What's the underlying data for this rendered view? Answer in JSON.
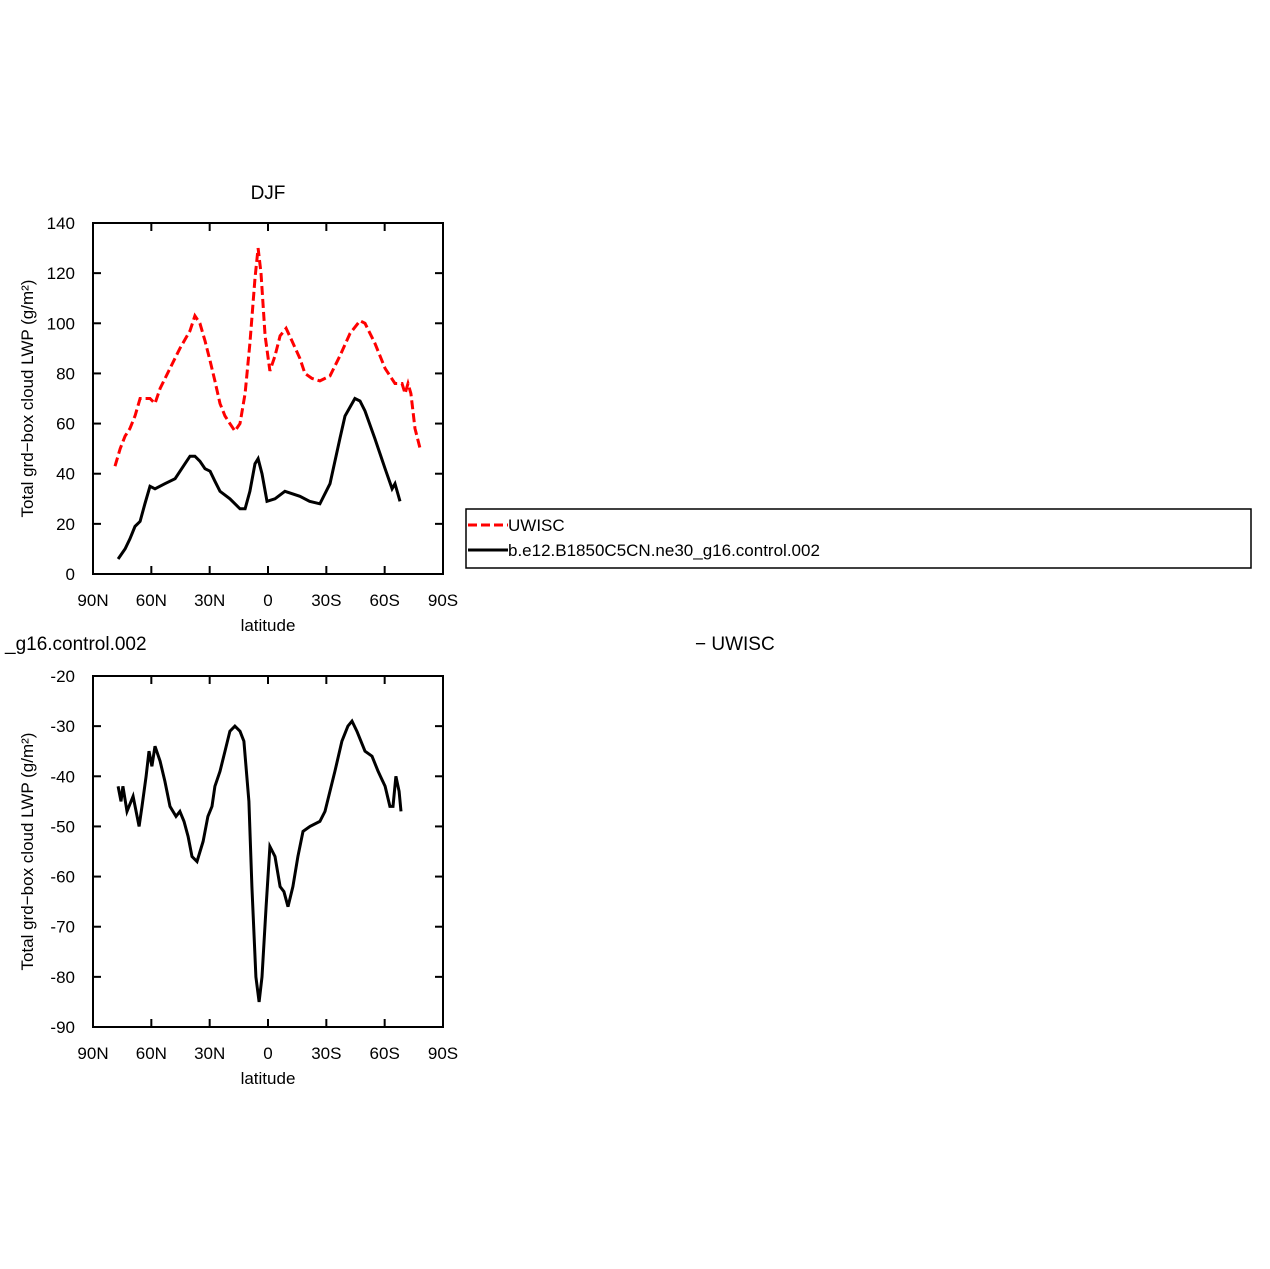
{
  "chart_data": [
    {
      "type": "line",
      "title": "DJF",
      "xlabel": "latitude",
      "ylabel": "Total grd−box cloud LWP (g/m²)",
      "xlim": [
        90,
        -90
      ],
      "ylim": [
        0,
        140
      ],
      "xticks": [
        {
          "value": 90,
          "label": "90N"
        },
        {
          "value": 60,
          "label": "60N"
        },
        {
          "value": 30,
          "label": "30N"
        },
        0,
        {
          "value": -30,
          "label": "30S"
        },
        {
          "value": -60,
          "label": "60S"
        },
        {
          "value": -90,
          "label": "90S"
        }
      ],
      "yticks": [
        0,
        20,
        40,
        60,
        80,
        100,
        120,
        140
      ],
      "legend": "right",
      "series": [
        {
          "name": "UWISC",
          "color": "#ff0000",
          "line_style": "dashed",
          "x": [
            78.7,
            76,
            73.5,
            71,
            68.4,
            65.8,
            63.3,
            60.7,
            58.1,
            55.5,
            50.4,
            45.3,
            40.1,
            37.6,
            35,
            32.4,
            29.8,
            27.3,
            24.7,
            22.1,
            19.6,
            17,
            14.4,
            11.8,
            9.3,
            6.7,
            5.1,
            3.6,
            1.5,
            -1,
            -3.6,
            -6.2,
            -9.3,
            -12.3,
            -16.4,
            -19,
            -22.6,
            -26.7,
            -31.9,
            -37,
            -42.2,
            -47.3,
            -49.9,
            -55,
            -60.2,
            -65.3,
            -68.9,
            -70.5,
            -72,
            -73.5,
            -75.6,
            -78.2
          ],
          "values": [
            43,
            50,
            55,
            58,
            63,
            70,
            70,
            70,
            68,
            74,
            82,
            90,
            97,
            103,
            100,
            93,
            85,
            77,
            68,
            63,
            60,
            57,
            60,
            72,
            92,
            118,
            130,
            120,
            95,
            81,
            87,
            95,
            98,
            93,
            86,
            80,
            78,
            77,
            79,
            87,
            96,
            101,
            100,
            92,
            82,
            76,
            76,
            72,
            76,
            72,
            58,
            50
          ]
        },
        {
          "name": "b.e12.B1850C5CN.ne30_g16.control.002",
          "color": "#000000",
          "line_style": "solid",
          "x": [
            77.1,
            73.5,
            71,
            68.4,
            65.8,
            63.3,
            60.7,
            58.1,
            53,
            47.8,
            42.7,
            40.1,
            37.6,
            35,
            32.4,
            29.8,
            27.3,
            24.7,
            19.6,
            14.4,
            11.8,
            9.3,
            6.7,
            5.1,
            3.1,
            0.5,
            -3.6,
            -8.7,
            -16.4,
            -21.4,
            -26.7,
            -31.9,
            -37,
            -39.6,
            -44.7,
            -47.3,
            -49.9,
            -55,
            -60.2,
            -63.8,
            -65.3,
            -67.9
          ],
          "values": [
            6,
            10,
            14,
            19,
            21,
            28,
            35,
            34,
            36,
            38,
            44,
            47,
            47,
            45,
            42,
            41,
            37,
            33,
            30,
            26,
            26,
            33,
            44,
            46,
            40,
            29,
            30,
            33,
            31,
            29,
            28,
            36,
            54,
            63,
            70,
            69,
            65,
            54,
            42,
            34,
            36,
            29
          ]
        }
      ]
    },
    {
      "type": "line",
      "subtitle_left": "_g16.control.002",
      "subtitle_right": "− UWISC",
      "xlabel": "latitude",
      "ylabel": "Total grd−box cloud LWP (g/m²)",
      "xlim": [
        90,
        -90
      ],
      "ylim": [
        -90,
        -20
      ],
      "xticks": [
        {
          "value": 90,
          "label": "90N"
        },
        {
          "value": 60,
          "label": "60N"
        },
        {
          "value": 30,
          "label": "30N"
        },
        0,
        {
          "value": -30,
          "label": "30S"
        },
        {
          "value": -60,
          "label": "60S"
        },
        {
          "value": -90,
          "label": "90S"
        }
      ],
      "yticks": [
        -90,
        -80,
        -70,
        -60,
        -50,
        -40,
        -30,
        -20
      ],
      "series": [
        {
          "color": "#000000",
          "line_style": "solid",
          "x": [
            77.1,
            75.6,
            74.6,
            72.5,
            69.4,
            66.3,
            64.8,
            62.7,
            61.2,
            59.7,
            58.1,
            55.5,
            53,
            50.4,
            47.3,
            45.3,
            43.2,
            41.1,
            39.1,
            36.5,
            33.4,
            30.9,
            28.8,
            27.3,
            24.7,
            22.1,
            19.6,
            17,
            14.4,
            12.4,
            9.8,
            8.3,
            6.2,
            4.6,
            3.1,
            1,
            -1,
            -3.6,
            -6.2,
            -8.2,
            -10.3,
            -12.8,
            -15.4,
            -18,
            -21.6,
            -26.7,
            -29.3,
            -34.4,
            -38,
            -41.1,
            -43.2,
            -45.7,
            -49.9,
            -53.5,
            -56.6,
            -60.2,
            -62.7,
            -64.3,
            -65.8,
            -67.4,
            -68.4
          ],
          "values": [
            -42,
            -45,
            -42,
            -47,
            -44,
            -50,
            -46,
            -40,
            -35,
            -38,
            -34,
            -37,
            -41,
            -46,
            -48,
            -47,
            -49,
            -52,
            -56,
            -57,
            -53,
            -48,
            -46,
            -42,
            -39,
            -35,
            -31,
            -30,
            -31,
            -33,
            -45,
            -62,
            -80,
            -85,
            -80,
            -66,
            -54,
            -56,
            -62,
            -63,
            -66,
            -62,
            -56,
            -51,
            -50,
            -49,
            -47,
            -39,
            -33,
            -30,
            -29,
            -31,
            -35,
            -36,
            -39,
            -42,
            -46,
            -46,
            -40,
            -43,
            -47
          ]
        }
      ]
    }
  ]
}
